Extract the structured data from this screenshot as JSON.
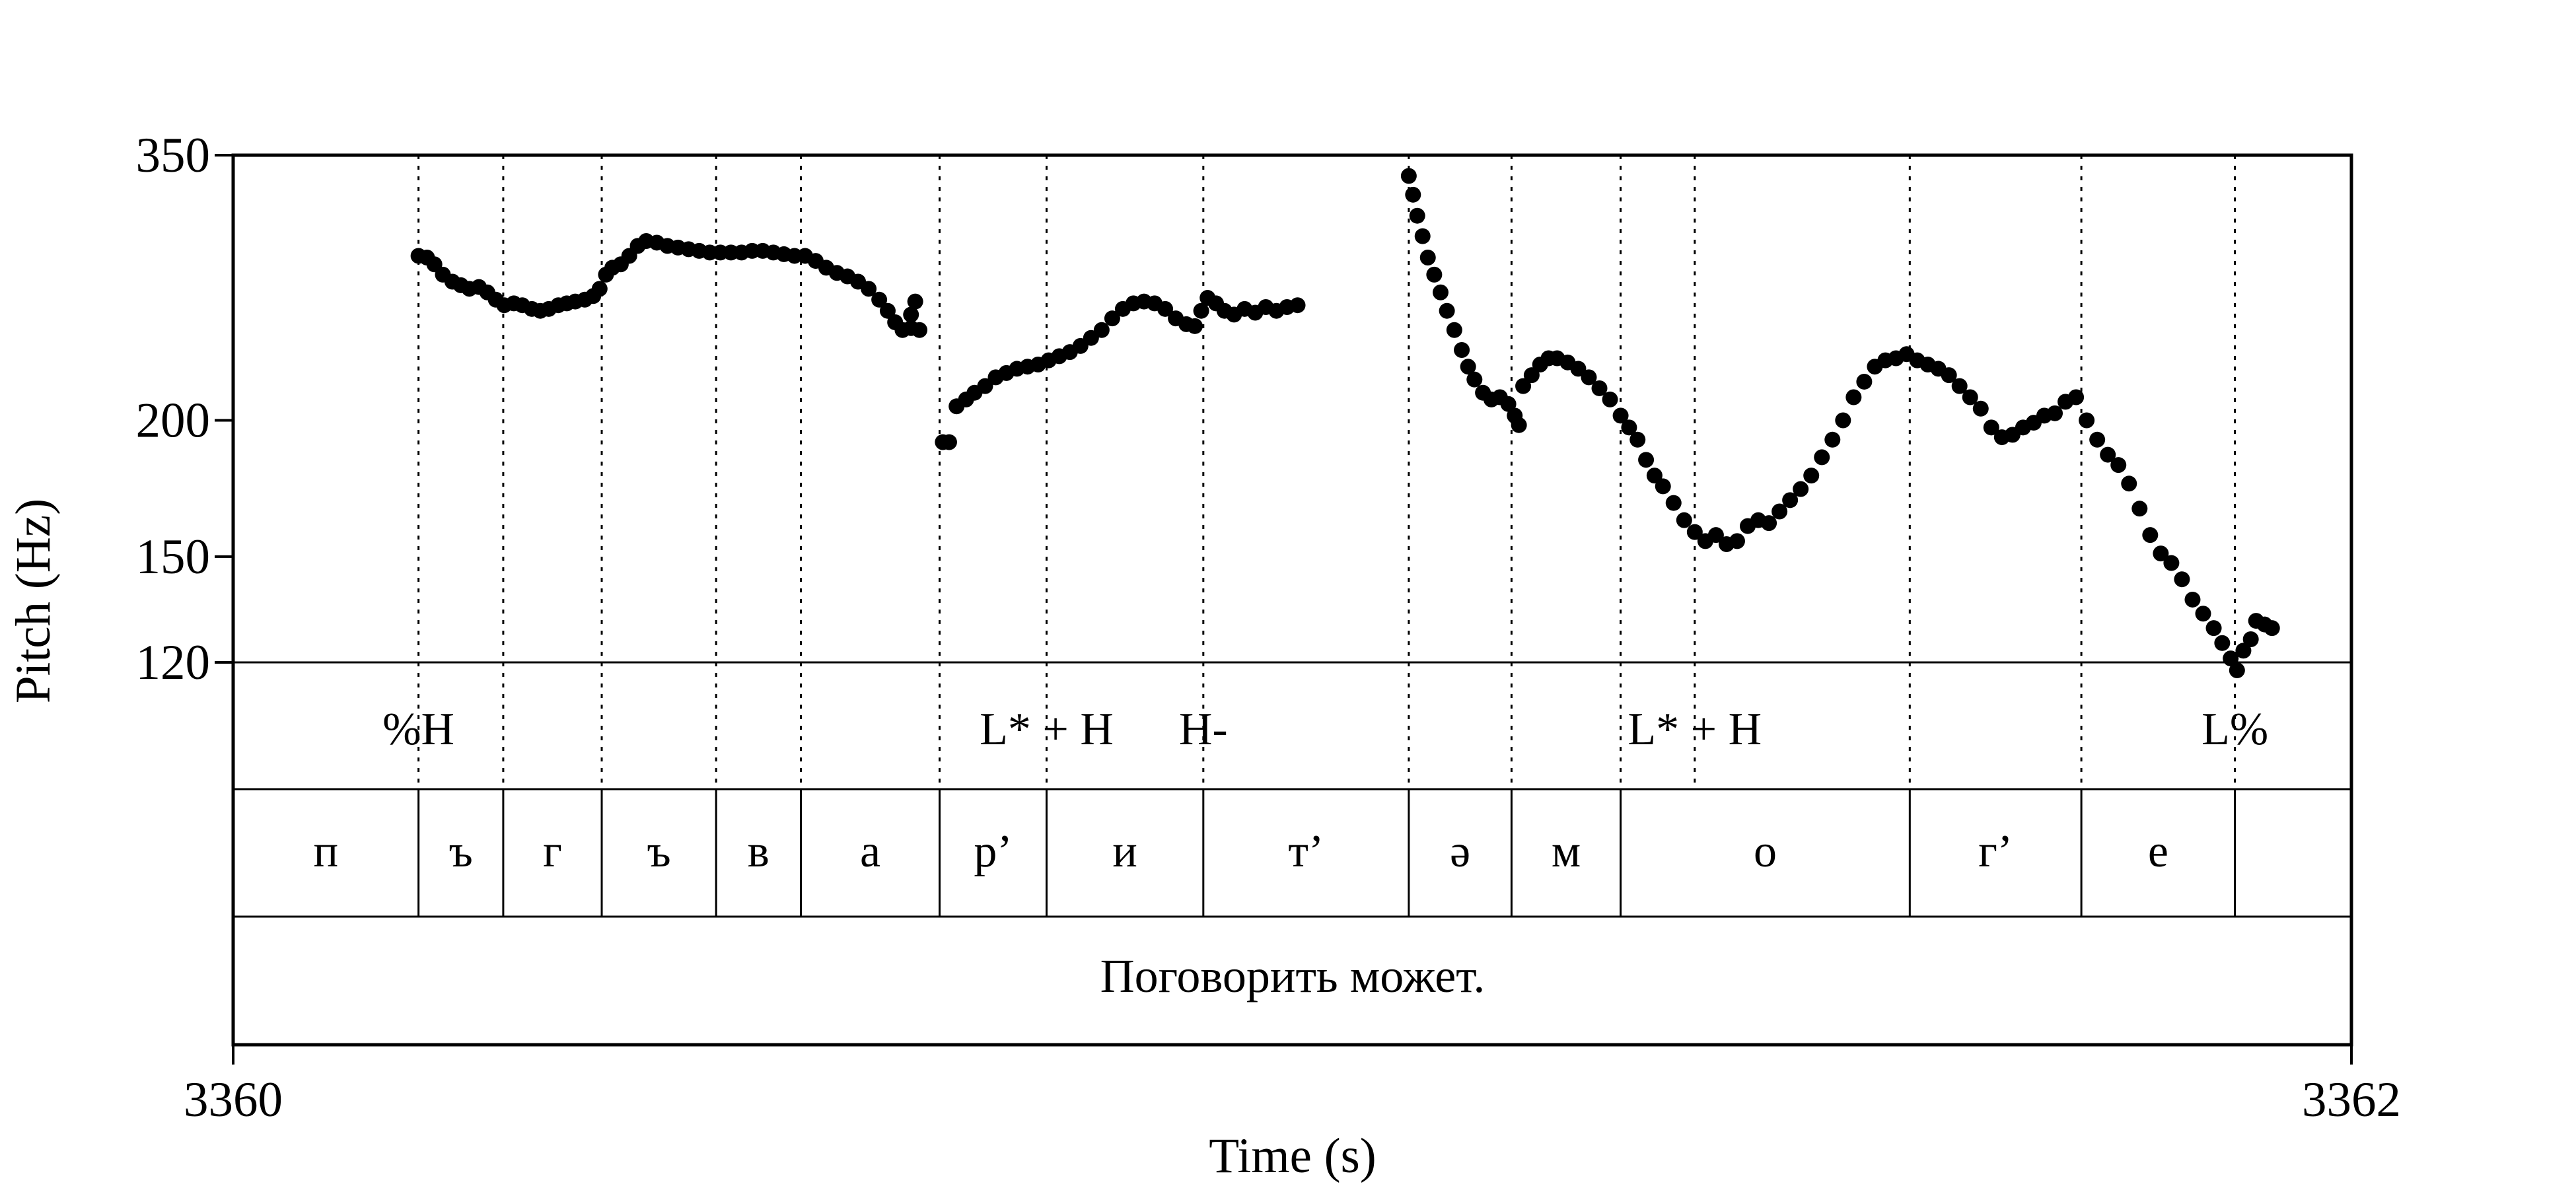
{
  "chart_data": {
    "type": "scatter",
    "title": "",
    "xlabel": "Time (s)",
    "ylabel": "Pitch (Hz)",
    "xlim": [
      3360,
      3362
    ],
    "ylim": [
      120,
      350
    ],
    "y_scale": "log",
    "x_tick_labels": [
      "3360",
      "3362"
    ],
    "y_ticks": [
      120,
      150,
      200,
      350
    ],
    "y_tick_labels": [
      "120",
      "150",
      "200",
      "350"
    ],
    "grid": false,
    "tone_boundaries": [
      3360.175,
      3360.255,
      3360.348,
      3360.456,
      3360.536,
      3360.667,
      3360.768,
      3360.916,
      3361.11,
      3361.207,
      3361.31,
      3361.38,
      3361.583,
      3361.745,
      3361.89
    ],
    "tones": [
      {
        "t": 3360.175,
        "label": "%H"
      },
      {
        "t": 3360.768,
        "label": "L* + H"
      },
      {
        "t": 3360.916,
        "label": "H-"
      },
      {
        "t": 3361.38,
        "label": "L* + H"
      },
      {
        "t": 3361.89,
        "label": "L%"
      }
    ],
    "segments": [
      {
        "start": 3360.0,
        "end": 3360.175,
        "label": "п"
      },
      {
        "start": 3360.175,
        "end": 3360.255,
        "label": "ъ"
      },
      {
        "start": 3360.255,
        "end": 3360.348,
        "label": "г"
      },
      {
        "start": 3360.348,
        "end": 3360.456,
        "label": "ъ"
      },
      {
        "start": 3360.456,
        "end": 3360.536,
        "label": "в"
      },
      {
        "start": 3360.536,
        "end": 3360.667,
        "label": "а"
      },
      {
        "start": 3360.667,
        "end": 3360.768,
        "label": "р’"
      },
      {
        "start": 3360.768,
        "end": 3360.916,
        "label": "и"
      },
      {
        "start": 3360.916,
        "end": 3361.11,
        "label": "т’"
      },
      {
        "start": 3361.11,
        "end": 3361.207,
        "label": "ə"
      },
      {
        "start": 3361.207,
        "end": 3361.31,
        "label": "м"
      },
      {
        "start": 3361.31,
        "end": 3361.583,
        "label": "о"
      },
      {
        "start": 3361.583,
        "end": 3361.745,
        "label": "г’"
      },
      {
        "start": 3361.745,
        "end": 3361.89,
        "label": "е"
      },
      {
        "start": 3361.89,
        "end": 3362.0,
        "label": ""
      }
    ],
    "sentence": "Поговорить может.",
    "series": [
      {
        "points": [
          [
            3360.175,
            283
          ],
          [
            3360.183,
            282
          ],
          [
            3360.19,
            278
          ],
          [
            3360.198,
            272
          ],
          [
            3360.207,
            268
          ],
          [
            3360.215,
            266
          ],
          [
            3360.223,
            264
          ],
          [
            3360.232,
            265
          ],
          [
            3360.24,
            262
          ],
          [
            3360.248,
            258
          ],
          [
            3360.256,
            255
          ],
          [
            3360.265,
            256
          ],
          [
            3360.273,
            255
          ],
          [
            3360.282,
            253
          ],
          [
            3360.29,
            252
          ],
          [
            3360.298,
            253
          ],
          [
            3360.307,
            255
          ],
          [
            3360.315,
            256
          ],
          [
            3360.323,
            257
          ],
          [
            3360.332,
            258
          ],
          [
            3360.34,
            260
          ],
          [
            3360.346,
            264
          ],
          [
            3360.352,
            272
          ],
          [
            3360.358,
            276
          ],
          [
            3360.366,
            278
          ],
          [
            3360.374,
            283
          ],
          [
            3360.382,
            289
          ],
          [
            3360.39,
            292
          ],
          [
            3360.4,
            291
          ],
          [
            3360.41,
            289
          ],
          [
            3360.42,
            288
          ],
          [
            3360.43,
            287
          ],
          [
            3360.44,
            286
          ],
          [
            3360.45,
            285
          ],
          [
            3360.46,
            285
          ],
          [
            3360.47,
            285
          ],
          [
            3360.48,
            285
          ],
          [
            3360.49,
            286
          ],
          [
            3360.5,
            286
          ],
          [
            3360.51,
            285
          ],
          [
            3360.52,
            284
          ],
          [
            3360.53,
            283
          ],
          [
            3360.54,
            283
          ],
          [
            3360.55,
            280
          ],
          [
            3360.56,
            276
          ],
          [
            3360.57,
            273
          ],
          [
            3360.58,
            271
          ],
          [
            3360.59,
            268
          ],
          [
            3360.6,
            264
          ],
          [
            3360.61,
            258
          ],
          [
            3360.618,
            252
          ],
          [
            3360.625,
            246
          ],
          [
            3360.632,
            242
          ],
          [
            3360.64,
            243
          ],
          [
            3360.648,
            242
          ],
          [
            3360.64,
            250
          ],
          [
            3360.644,
            257
          ]
        ]
      },
      {
        "points": [
          [
            3360.67,
            191
          ],
          [
            3360.676,
            191
          ],
          [
            3360.683,
            206
          ],
          [
            3360.692,
            209
          ],
          [
            3360.7,
            212
          ],
          [
            3360.71,
            215
          ],
          [
            3360.72,
            219
          ],
          [
            3360.73,
            221
          ],
          [
            3360.74,
            223
          ],
          [
            3360.75,
            224
          ],
          [
            3360.76,
            225
          ],
          [
            3360.77,
            227
          ],
          [
            3360.78,
            229
          ],
          [
            3360.79,
            231
          ],
          [
            3360.8,
            234
          ],
          [
            3360.81,
            238
          ],
          [
            3360.82,
            242
          ],
          [
            3360.83,
            248
          ],
          [
            3360.84,
            253
          ],
          [
            3360.85,
            256
          ],
          [
            3360.86,
            257
          ],
          [
            3360.87,
            256
          ],
          [
            3360.88,
            253
          ],
          [
            3360.89,
            248
          ],
          [
            3360.9,
            245
          ],
          [
            3360.908,
            244
          ],
          [
            3360.914,
            252
          ],
          [
            3360.92,
            259
          ],
          [
            3360.928,
            256
          ],
          [
            3360.936,
            252
          ],
          [
            3360.945,
            250
          ],
          [
            3360.955,
            253
          ],
          [
            3360.965,
            251
          ],
          [
            3360.975,
            254
          ],
          [
            3360.985,
            252
          ],
          [
            3360.995,
            254
          ],
          [
            3361.005,
            255
          ]
        ]
      },
      {
        "points": [
          [
            3361.11,
            335
          ],
          [
            3361.114,
            322
          ],
          [
            3361.118,
            308
          ],
          [
            3361.123,
            295
          ],
          [
            3361.128,
            282
          ],
          [
            3361.134,
            272
          ],
          [
            3361.14,
            262
          ],
          [
            3361.146,
            252
          ],
          [
            3361.153,
            242
          ],
          [
            3361.16,
            232
          ],
          [
            3361.166,
            224
          ],
          [
            3361.172,
            218
          ],
          [
            3361.18,
            212
          ],
          [
            3361.188,
            209
          ],
          [
            3361.196,
            210
          ],
          [
            3361.204,
            207
          ],
          [
            3361.21,
            202
          ],
          [
            3361.214,
            198
          ],
          [
            3361.218,
            215
          ],
          [
            3361.226,
            220
          ],
          [
            3361.234,
            225
          ],
          [
            3361.242,
            228
          ],
          [
            3361.25,
            228
          ],
          [
            3361.26,
            226
          ],
          [
            3361.27,
            223
          ],
          [
            3361.28,
            219
          ],
          [
            3361.29,
            214
          ],
          [
            3361.3,
            209
          ],
          [
            3361.31,
            202
          ],
          [
            3361.318,
            197
          ],
          [
            3361.326,
            192
          ],
          [
            3361.334,
            184
          ],
          [
            3361.342,
            178
          ],
          [
            3361.35,
            174
          ],
          [
            3361.36,
            168
          ],
          [
            3361.37,
            162
          ],
          [
            3361.38,
            158
          ],
          [
            3361.39,
            155
          ],
          [
            3361.4,
            157
          ],
          [
            3361.41,
            154
          ],
          [
            3361.42,
            155
          ],
          [
            3361.43,
            160
          ],
          [
            3361.44,
            162
          ],
          [
            3361.45,
            161
          ],
          [
            3361.46,
            165
          ],
          [
            3361.47,
            169
          ],
          [
            3361.48,
            173
          ],
          [
            3361.49,
            178
          ],
          [
            3361.5,
            185
          ],
          [
            3361.51,
            192
          ],
          [
            3361.52,
            200
          ],
          [
            3361.53,
            210
          ],
          [
            3361.54,
            217
          ],
          [
            3361.55,
            224
          ],
          [
            3361.56,
            227
          ],
          [
            3361.57,
            228
          ],
          [
            3361.58,
            230
          ],
          [
            3361.59,
            227
          ],
          [
            3361.6,
            225
          ],
          [
            3361.61,
            223
          ],
          [
            3361.62,
            220
          ],
          [
            3361.63,
            215
          ],
          [
            3361.64,
            210
          ],
          [
            3361.65,
            205
          ],
          [
            3361.66,
            197
          ],
          [
            3361.67,
            193
          ],
          [
            3361.68,
            194
          ],
          [
            3361.69,
            197
          ],
          [
            3361.7,
            199
          ],
          [
            3361.71,
            202
          ],
          [
            3361.72,
            203
          ],
          [
            3361.73,
            208
          ],
          [
            3361.74,
            210
          ],
          [
            3361.75,
            200
          ],
          [
            3361.76,
            192
          ],
          [
            3361.77,
            186
          ],
          [
            3361.78,
            182
          ],
          [
            3361.79,
            175
          ],
          [
            3361.8,
            166
          ],
          [
            3361.81,
            157
          ],
          [
            3361.82,
            151
          ],
          [
            3361.83,
            148
          ],
          [
            3361.84,
            143
          ],
          [
            3361.85,
            137
          ],
          [
            3361.86,
            133
          ],
          [
            3361.87,
            129
          ],
          [
            3361.878,
            125
          ],
          [
            3361.886,
            121
          ],
          [
            3361.892,
            118
          ],
          [
            3361.898,
            123
          ],
          [
            3361.905,
            126
          ],
          [
            3361.91,
            131
          ],
          [
            3361.918,
            130
          ],
          [
            3361.925,
            129
          ]
        ]
      }
    ]
  }
}
